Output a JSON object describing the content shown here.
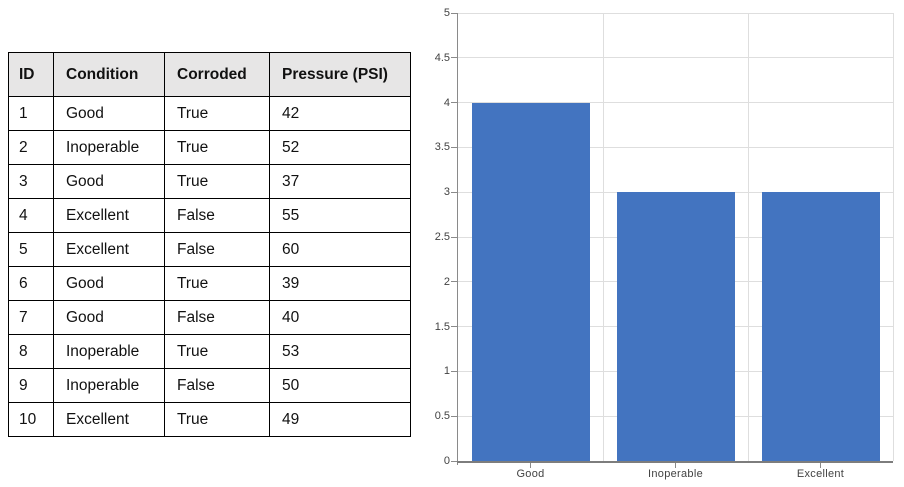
{
  "table": {
    "headers": [
      "ID",
      "Condition",
      "Corroded",
      "Pressure (PSI)"
    ],
    "rows": [
      [
        "1",
        "Good",
        "True",
        "42"
      ],
      [
        "2",
        "Inoperable",
        "True",
        "52"
      ],
      [
        "3",
        "Good",
        "True",
        "37"
      ],
      [
        "4",
        "Excellent",
        "False",
        "55"
      ],
      [
        "5",
        "Excellent",
        "False",
        "60"
      ],
      [
        "6",
        "Good",
        "True",
        "39"
      ],
      [
        "7",
        "Good",
        "False",
        "40"
      ],
      [
        "8",
        "Inoperable",
        "True",
        "53"
      ],
      [
        "9",
        "Inoperable",
        "False",
        "50"
      ],
      [
        "10",
        "Excellent",
        "True",
        "49"
      ]
    ],
    "header_bg": "#e7e6e6",
    "border_color": "#000000",
    "text_color": "#111111"
  },
  "chart_data": {
    "type": "bar",
    "title": "",
    "categories": [
      "Good",
      "Inoperable",
      "Excellent"
    ],
    "values": [
      4,
      3,
      3
    ],
    "xlabel": "",
    "ylabel": "",
    "ylim": [
      0,
      5
    ],
    "y_ticks": [
      0,
      0.5,
      1,
      1.5,
      2,
      2.5,
      3,
      3.5,
      4,
      4.5,
      5
    ],
    "grid": true,
    "legend": "none",
    "bar_color": "#4374c0",
    "gridline_color": "#dedede",
    "axis_color": "#8a8a8a",
    "x_axis_color": "#7d7d7d",
    "tick_label_color": "#424242",
    "plot_bg": "#ffffff"
  }
}
